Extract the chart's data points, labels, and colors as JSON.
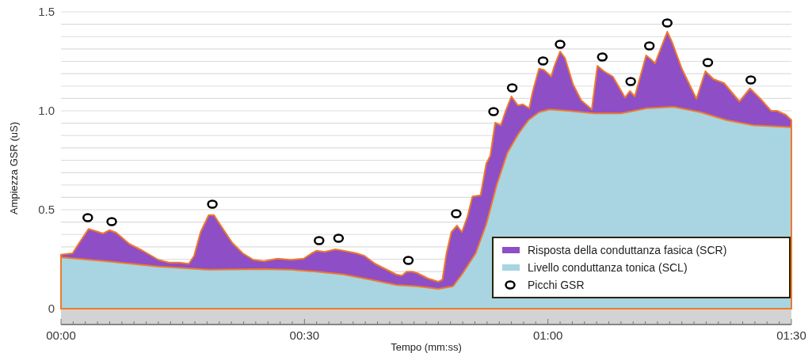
{
  "chart_data": {
    "type": "area",
    "xlabel": "Tempo (mm:ss)",
    "ylabel": "Ampiezza GSR (uS)",
    "xlim": [
      0,
      90
    ],
    "ylim": [
      -0.08,
      1.5
    ],
    "xticks": [
      {
        "value": 0,
        "label": "00:00"
      },
      {
        "value": 1.5,
        "label": null
      },
      {
        "value": 3,
        "label": null
      },
      {
        "value": 4.5,
        "label": null
      },
      {
        "value": 6,
        "label": null
      },
      {
        "value": 7.5,
        "label": null
      },
      {
        "value": 9,
        "label": null
      },
      {
        "value": 10.5,
        "label": null
      },
      {
        "value": 12,
        "label": null
      },
      {
        "value": 13.5,
        "label": null
      },
      {
        "value": 15,
        "label": null
      },
      {
        "value": 16.5,
        "label": null
      },
      {
        "value": 18,
        "label": null
      },
      {
        "value": 19.5,
        "label": null
      },
      {
        "value": 21,
        "label": null
      },
      {
        "value": 22.5,
        "label": null
      },
      {
        "value": 24,
        "label": null
      },
      {
        "value": 25.5,
        "label": null
      },
      {
        "value": 27,
        "label": null
      },
      {
        "value": 28.5,
        "label": null
      },
      {
        "value": 30,
        "label": "00:30"
      },
      {
        "value": 31.5,
        "label": null
      },
      {
        "value": 33,
        "label": null
      },
      {
        "value": 34.5,
        "label": null
      },
      {
        "value": 36,
        "label": null
      },
      {
        "value": 37.5,
        "label": null
      },
      {
        "value": 39,
        "label": null
      },
      {
        "value": 40.5,
        "label": null
      },
      {
        "value": 42,
        "label": null
      },
      {
        "value": 43.5,
        "label": null
      },
      {
        "value": 45,
        "label": null
      },
      {
        "value": 46.5,
        "label": null
      },
      {
        "value": 48,
        "label": null
      },
      {
        "value": 49.5,
        "label": null
      },
      {
        "value": 51,
        "label": null
      },
      {
        "value": 52.5,
        "label": null
      },
      {
        "value": 54,
        "label": null
      },
      {
        "value": 55.5,
        "label": null
      },
      {
        "value": 57,
        "label": null
      },
      {
        "value": 58.5,
        "label": null
      },
      {
        "value": 60,
        "label": "01:00"
      },
      {
        "value": 61.5,
        "label": null
      },
      {
        "value": 63,
        "label": null
      },
      {
        "value": 64.5,
        "label": null
      },
      {
        "value": 66,
        "label": null
      },
      {
        "value": 67.5,
        "label": null
      },
      {
        "value": 69,
        "label": null
      },
      {
        "value": 70.5,
        "label": null
      },
      {
        "value": 72,
        "label": null
      },
      {
        "value": 73.5,
        "label": null
      },
      {
        "value": 75,
        "label": null
      },
      {
        "value": 76.5,
        "label": null
      },
      {
        "value": 78,
        "label": null
      },
      {
        "value": 79.5,
        "label": null
      },
      {
        "value": 81,
        "label": null
      },
      {
        "value": 82.5,
        "label": null
      },
      {
        "value": 84,
        "label": null
      },
      {
        "value": 85.5,
        "label": null
      },
      {
        "value": 87,
        "label": null
      },
      {
        "value": 88.5,
        "label": null
      },
      {
        "value": 90,
        "label": "01:30"
      }
    ],
    "yticks": [
      0,
      {
        "value": 0.1875,
        "label": null
      },
      {
        "value": 0.25,
        "label": null
      },
      {
        "value": 0.3125,
        "label": null
      },
      {
        "value": 0.375,
        "label": null
      },
      {
        "value": 0.4375,
        "label": null
      },
      0.5,
      {
        "value": 0.5625,
        "label": null
      },
      {
        "value": 0.625,
        "label": null
      },
      {
        "value": 0.6875,
        "label": null
      },
      {
        "value": 0.75,
        "label": null
      },
      {
        "value": 0.8125,
        "label": null
      },
      {
        "value": 0.875,
        "label": null
      },
      {
        "value": 0.9375,
        "label": null
      },
      {
        "value": 1,
        "label": "1.0"
      },
      {
        "value": 1.0625,
        "label": null
      },
      {
        "value": 1.125,
        "label": null
      },
      {
        "value": 1.1875,
        "label": null
      },
      {
        "value": 1.25,
        "label": null
      },
      {
        "value": 1.3125,
        "label": null
      },
      {
        "value": 1.375,
        "label": null
      },
      {
        "value": 1.4375,
        "label": null
      },
      1.5
    ],
    "grid": "y",
    "legend": "bottom right",
    "bands": [
      {
        "axis": "y",
        "from": -0.08,
        "to": 0,
        "color": "#d3d3d3"
      }
    ],
    "series": [
      {
        "name": "Risposta della conduttanza fasica (SCR)",
        "color": "#8e4ec6",
        "x": [
          0,
          1.43,
          2.25,
          3.39,
          4.2,
          5.18,
          5.99,
          6.8,
          8.43,
          10.06,
          12.0,
          13.3,
          14.6,
          15.75,
          16.4,
          17.2,
          18.2,
          18.85,
          19.8,
          21.1,
          22.4,
          23.7,
          25.0,
          26.7,
          28.3,
          29.9,
          30.9,
          31.5,
          32.5,
          33.8,
          34.8,
          36.4,
          37.4,
          38.7,
          40.0,
          41.3,
          42.0,
          42.6,
          43.3,
          43.9,
          45.2,
          46.5,
          47.0,
          47.5,
          48.1,
          48.8,
          49.4,
          50.1,
          50.7,
          51.7,
          52.4,
          52.9,
          53.5,
          54.2,
          54.8,
          55.5,
          56.3,
          56.9,
          57.7,
          58.1,
          58.9,
          59.5,
          60.4,
          60.8,
          61.5,
          62.1,
          63.1,
          64.1,
          65.4,
          66.1,
          66.9,
          68.0,
          69.5,
          70.1,
          70.7,
          72.1,
          72.7,
          73.2,
          74.7,
          75.3,
          76.5,
          78.3,
          79.4,
          80.4,
          81.7,
          83.6,
          84.9,
          86.2,
          87.5,
          88.2,
          89.3,
          90
        ],
        "values": [
          0.273,
          0.28,
          0.333,
          0.403,
          0.393,
          0.38,
          0.397,
          0.384,
          0.327,
          0.293,
          0.247,
          0.233,
          0.233,
          0.227,
          0.267,
          0.387,
          0.473,
          0.473,
          0.413,
          0.333,
          0.28,
          0.247,
          0.24,
          0.253,
          0.247,
          0.253,
          0.28,
          0.293,
          0.287,
          0.3,
          0.293,
          0.28,
          0.267,
          0.227,
          0.2,
          0.173,
          0.167,
          0.187,
          0.187,
          0.18,
          0.153,
          0.136,
          0.147,
          0.28,
          0.387,
          0.42,
          0.387,
          0.467,
          0.567,
          0.573,
          0.733,
          0.773,
          0.94,
          0.927,
          1.0,
          1.073,
          1.027,
          1.033,
          1.013,
          1.093,
          1.213,
          1.207,
          1.173,
          1.227,
          1.3,
          1.267,
          1.133,
          1.053,
          1.007,
          1.227,
          1.2,
          1.173,
          1.067,
          1.1,
          1.073,
          1.28,
          1.26,
          1.24,
          1.4,
          1.347,
          1.213,
          1.06,
          1.2,
          1.16,
          1.14,
          1.047,
          1.113,
          1.06,
          1.0,
          1.0,
          0.98,
          0.953
        ]
      },
      {
        "name": "Livello conduttanza tonica (SCL)",
        "color": "#a8d5e1",
        "x": [
          0,
          5.5,
          12.0,
          18.2,
          25.0,
          28.3,
          31.5,
          34.8,
          38.1,
          41.3,
          43.9,
          46.5,
          48.3,
          49.4,
          51.1,
          52.4,
          53.7,
          55.0,
          56.3,
          57.6,
          58.9,
          60.2,
          62.5,
          65.7,
          69.0,
          72.2,
          75.5,
          78.8,
          82.0,
          85.3,
          90
        ],
        "values": [
          0.26,
          0.24,
          0.213,
          0.197,
          0.2,
          0.197,
          0.187,
          0.173,
          0.147,
          0.12,
          0.113,
          0.1,
          0.113,
          0.173,
          0.28,
          0.427,
          0.627,
          0.787,
          0.88,
          0.953,
          0.993,
          1.007,
          1.0,
          0.987,
          0.987,
          1.013,
          1.02,
          0.993,
          0.953,
          0.927,
          0.917
        ]
      },
      {
        "name": "Picchi GSR",
        "type": "scatter",
        "marker": "circle",
        "color": "#000000",
        "x": [
          3.3,
          6.25,
          18.65,
          31.8,
          34.2,
          42.8,
          48.7,
          53.3,
          55.6,
          59.4,
          61.5,
          66.7,
          70.2,
          72.5,
          74.7,
          79.7,
          85.0
        ],
        "values": [
          0.46,
          0.44,
          0.528,
          0.344,
          0.356,
          0.244,
          0.48,
          0.996,
          1.116,
          1.252,
          1.336,
          1.272,
          1.148,
          1.328,
          1.444,
          1.244,
          1.156
        ]
      }
    ]
  }
}
